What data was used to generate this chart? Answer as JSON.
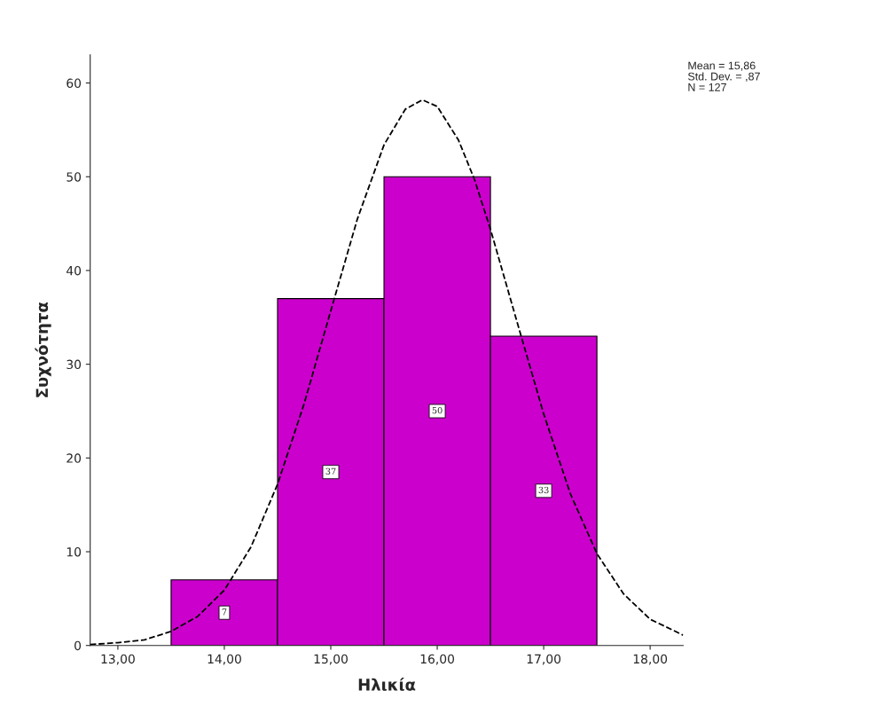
{
  "chart_data": {
    "type": "histogram",
    "xlabel": "Ηλικία",
    "ylabel": "Συχνότητα",
    "series": [
      {
        "bins": [
          13.5,
          14.5,
          15.5,
          16.5,
          17.5
        ],
        "values": [
          7,
          37,
          50,
          33
        ],
        "value_labels": [
          "7",
          "37",
          "50",
          "33"
        ],
        "color": "#cc00cc"
      },
      {
        "type": "line",
        "x": [
          12.74,
          13.0,
          13.25,
          13.5,
          13.75,
          14.0,
          14.25,
          14.5,
          14.75,
          15.0,
          15.25,
          15.5,
          15.7,
          15.86,
          16.0,
          16.2,
          16.35,
          16.5,
          16.75,
          17.0,
          17.25,
          17.5,
          17.75,
          18.0,
          18.31
        ],
        "values": [
          0.1,
          0.3,
          0.6,
          1.5,
          3.1,
          5.9,
          10.5,
          17.2,
          25.8,
          35.7,
          45.5,
          53.4,
          57.2,
          58.2,
          57.5,
          53.9,
          49.7,
          44.4,
          34.5,
          24.7,
          16.2,
          9.8,
          5.5,
          2.8,
          1.1
        ],
        "color": "#000000",
        "line_style": "dashed"
      }
    ],
    "annotations": [
      "Mean = 15,86",
      "Std. Dev. = ,87",
      "N = 127"
    ],
    "xlim": [
      12.74,
      18.31
    ],
    "ylim": [
      0,
      63
    ],
    "xticks": [
      {
        "value": 13,
        "label": "13,00"
      },
      {
        "value": 14,
        "label": "14,00"
      },
      {
        "value": 15,
        "label": "15,00"
      },
      {
        "value": 16,
        "label": "16,00"
      },
      {
        "value": 17,
        "label": "17,00"
      },
      {
        "value": 18,
        "label": "18,00"
      }
    ],
    "yticks": [
      0,
      10,
      20,
      30,
      40,
      50,
      60
    ],
    "grid": false,
    "legend": false
  }
}
